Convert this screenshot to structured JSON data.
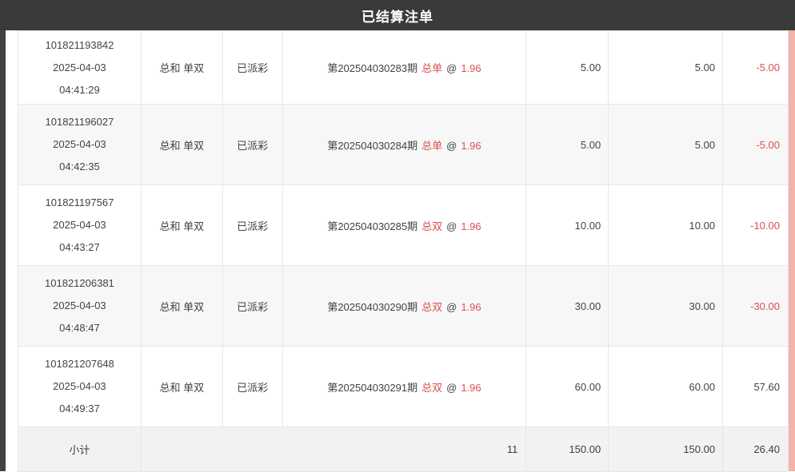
{
  "titlebar": {
    "title": "已结算注单"
  },
  "colors": {
    "header_bg": "#3a3a3a",
    "accent_red": "#d9534f",
    "alt_row_bg": "#f7f7f7",
    "footer_bg": "#f2f2f2",
    "scrollbar_pink": "#f4b3a9"
  },
  "table": {
    "rows": [
      {
        "id": "101821193842",
        "date": "2025-04-03",
        "time": "04:41:29",
        "play": "总和 单双",
        "status": "已派彩",
        "period": "第202504030283期",
        "pick": "总单",
        "at": "@",
        "odds": "1.96",
        "amount": "5.00",
        "payout": "5.00",
        "result": "-5.00"
      },
      {
        "id": "101821196027",
        "date": "2025-04-03",
        "time": "04:42:35",
        "play": "总和 单双",
        "status": "已派彩",
        "period": "第202504030284期",
        "pick": "总单",
        "at": "@",
        "odds": "1.96",
        "amount": "5.00",
        "payout": "5.00",
        "result": "-5.00"
      },
      {
        "id": "101821197567",
        "date": "2025-04-03",
        "time": "04:43:27",
        "play": "总和 单双",
        "status": "已派彩",
        "period": "第202504030285期",
        "pick": "总双",
        "at": "@",
        "odds": "1.96",
        "amount": "10.00",
        "payout": "10.00",
        "result": "-10.00"
      },
      {
        "id": "101821206381",
        "date": "2025-04-03",
        "time": "04:48:47",
        "play": "总和 单双",
        "status": "已派彩",
        "period": "第202504030290期",
        "pick": "总双",
        "at": "@",
        "odds": "1.96",
        "amount": "30.00",
        "payout": "30.00",
        "result": "-30.00"
      },
      {
        "id": "101821207648",
        "date": "2025-04-03",
        "time": "04:49:37",
        "play": "总和 单双",
        "status": "已派彩",
        "period": "第202504030291期",
        "pick": "总双",
        "at": "@",
        "odds": "1.96",
        "amount": "60.00",
        "payout": "60.00",
        "result": "57.60"
      }
    ],
    "summary": {
      "label": "小计",
      "count": "11",
      "amount": "150.00",
      "payout": "150.00",
      "result": "26.40"
    }
  }
}
